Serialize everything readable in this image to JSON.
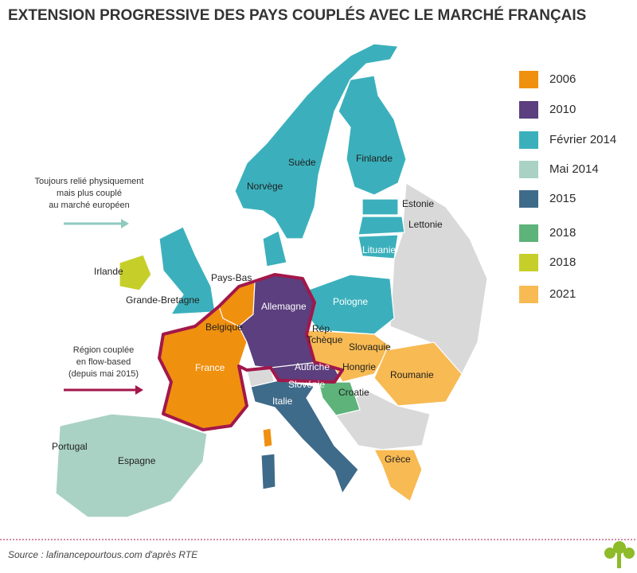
{
  "title": "EXTENSION PROGRESSIVE DES PAYS COUPLÉS AVEC LE MARCHÉ FRANÇAIS",
  "legend": [
    {
      "label": "2006",
      "color": "#f0900f"
    },
    {
      "label": "2010",
      "color": "#5b3f7e"
    },
    {
      "label": "Février 2014",
      "color": "#3bb0bc"
    },
    {
      "label": "Mai 2014",
      "color": "#a9d2c4"
    },
    {
      "label": "2015",
      "color": "#3f6b8a"
    },
    {
      "label": "2018",
      "color": "#5db37a"
    },
    {
      "label": "2018",
      "color": "#c6cf2a"
    },
    {
      "label": "2021",
      "color": "#f8ba53"
    }
  ],
  "countries": [
    "Suède",
    "Finlande",
    "Norvège",
    "Estonie",
    "Lettonie",
    "Lituanie",
    "Irlande",
    "Pays-Bas",
    "Grande-Bretagne",
    "Allemagne",
    "Pologne",
    "Belgique",
    [
      "Rép.",
      "Tchèque"
    ],
    "Slovaquie",
    "Hongrie",
    "Roumanie",
    "France",
    "Autriche",
    "Slovénie",
    "Croatie",
    "Italie",
    "Portugal",
    "Espagne",
    "Grèce"
  ],
  "annotations": [
    [
      "Toujours relié physiquement",
      "mais plus couplé",
      "au marché européen"
    ],
    [
      "Région couplée",
      "en flow-based",
      "(depuis mai 2015)"
    ]
  ],
  "source": "Source : lafinancepourtous.com d'après RTE"
}
